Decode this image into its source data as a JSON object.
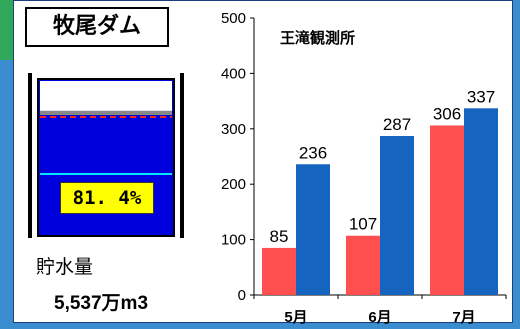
{
  "dam": {
    "name": "牧尾ダム",
    "fill_percent": 81.4,
    "percent_label": "81. 4%",
    "storage_label": "貯水量",
    "storage_value": "5,537万m3"
  },
  "colors": {
    "water": "#0000dd",
    "empty": "#ffffff",
    "red_line": "#ff2020",
    "cyan_line": "#00e5ff",
    "series_red": "#ff4f4f",
    "series_blue": "#1565c0"
  },
  "chart_data": {
    "type": "bar",
    "title": "王滝観測所",
    "categories": [
      "5月",
      "6月",
      "7月"
    ],
    "series": [
      {
        "values": [
          85,
          107,
          306
        ],
        "color": "#ff4f4f"
      },
      {
        "values": [
          236,
          287,
          337
        ],
        "color": "#1565c0"
      }
    ],
    "ylim": [
      0,
      500
    ],
    "yticks": [
      0,
      100,
      200,
      300,
      400,
      500
    ],
    "grid": false,
    "legend": "none"
  }
}
